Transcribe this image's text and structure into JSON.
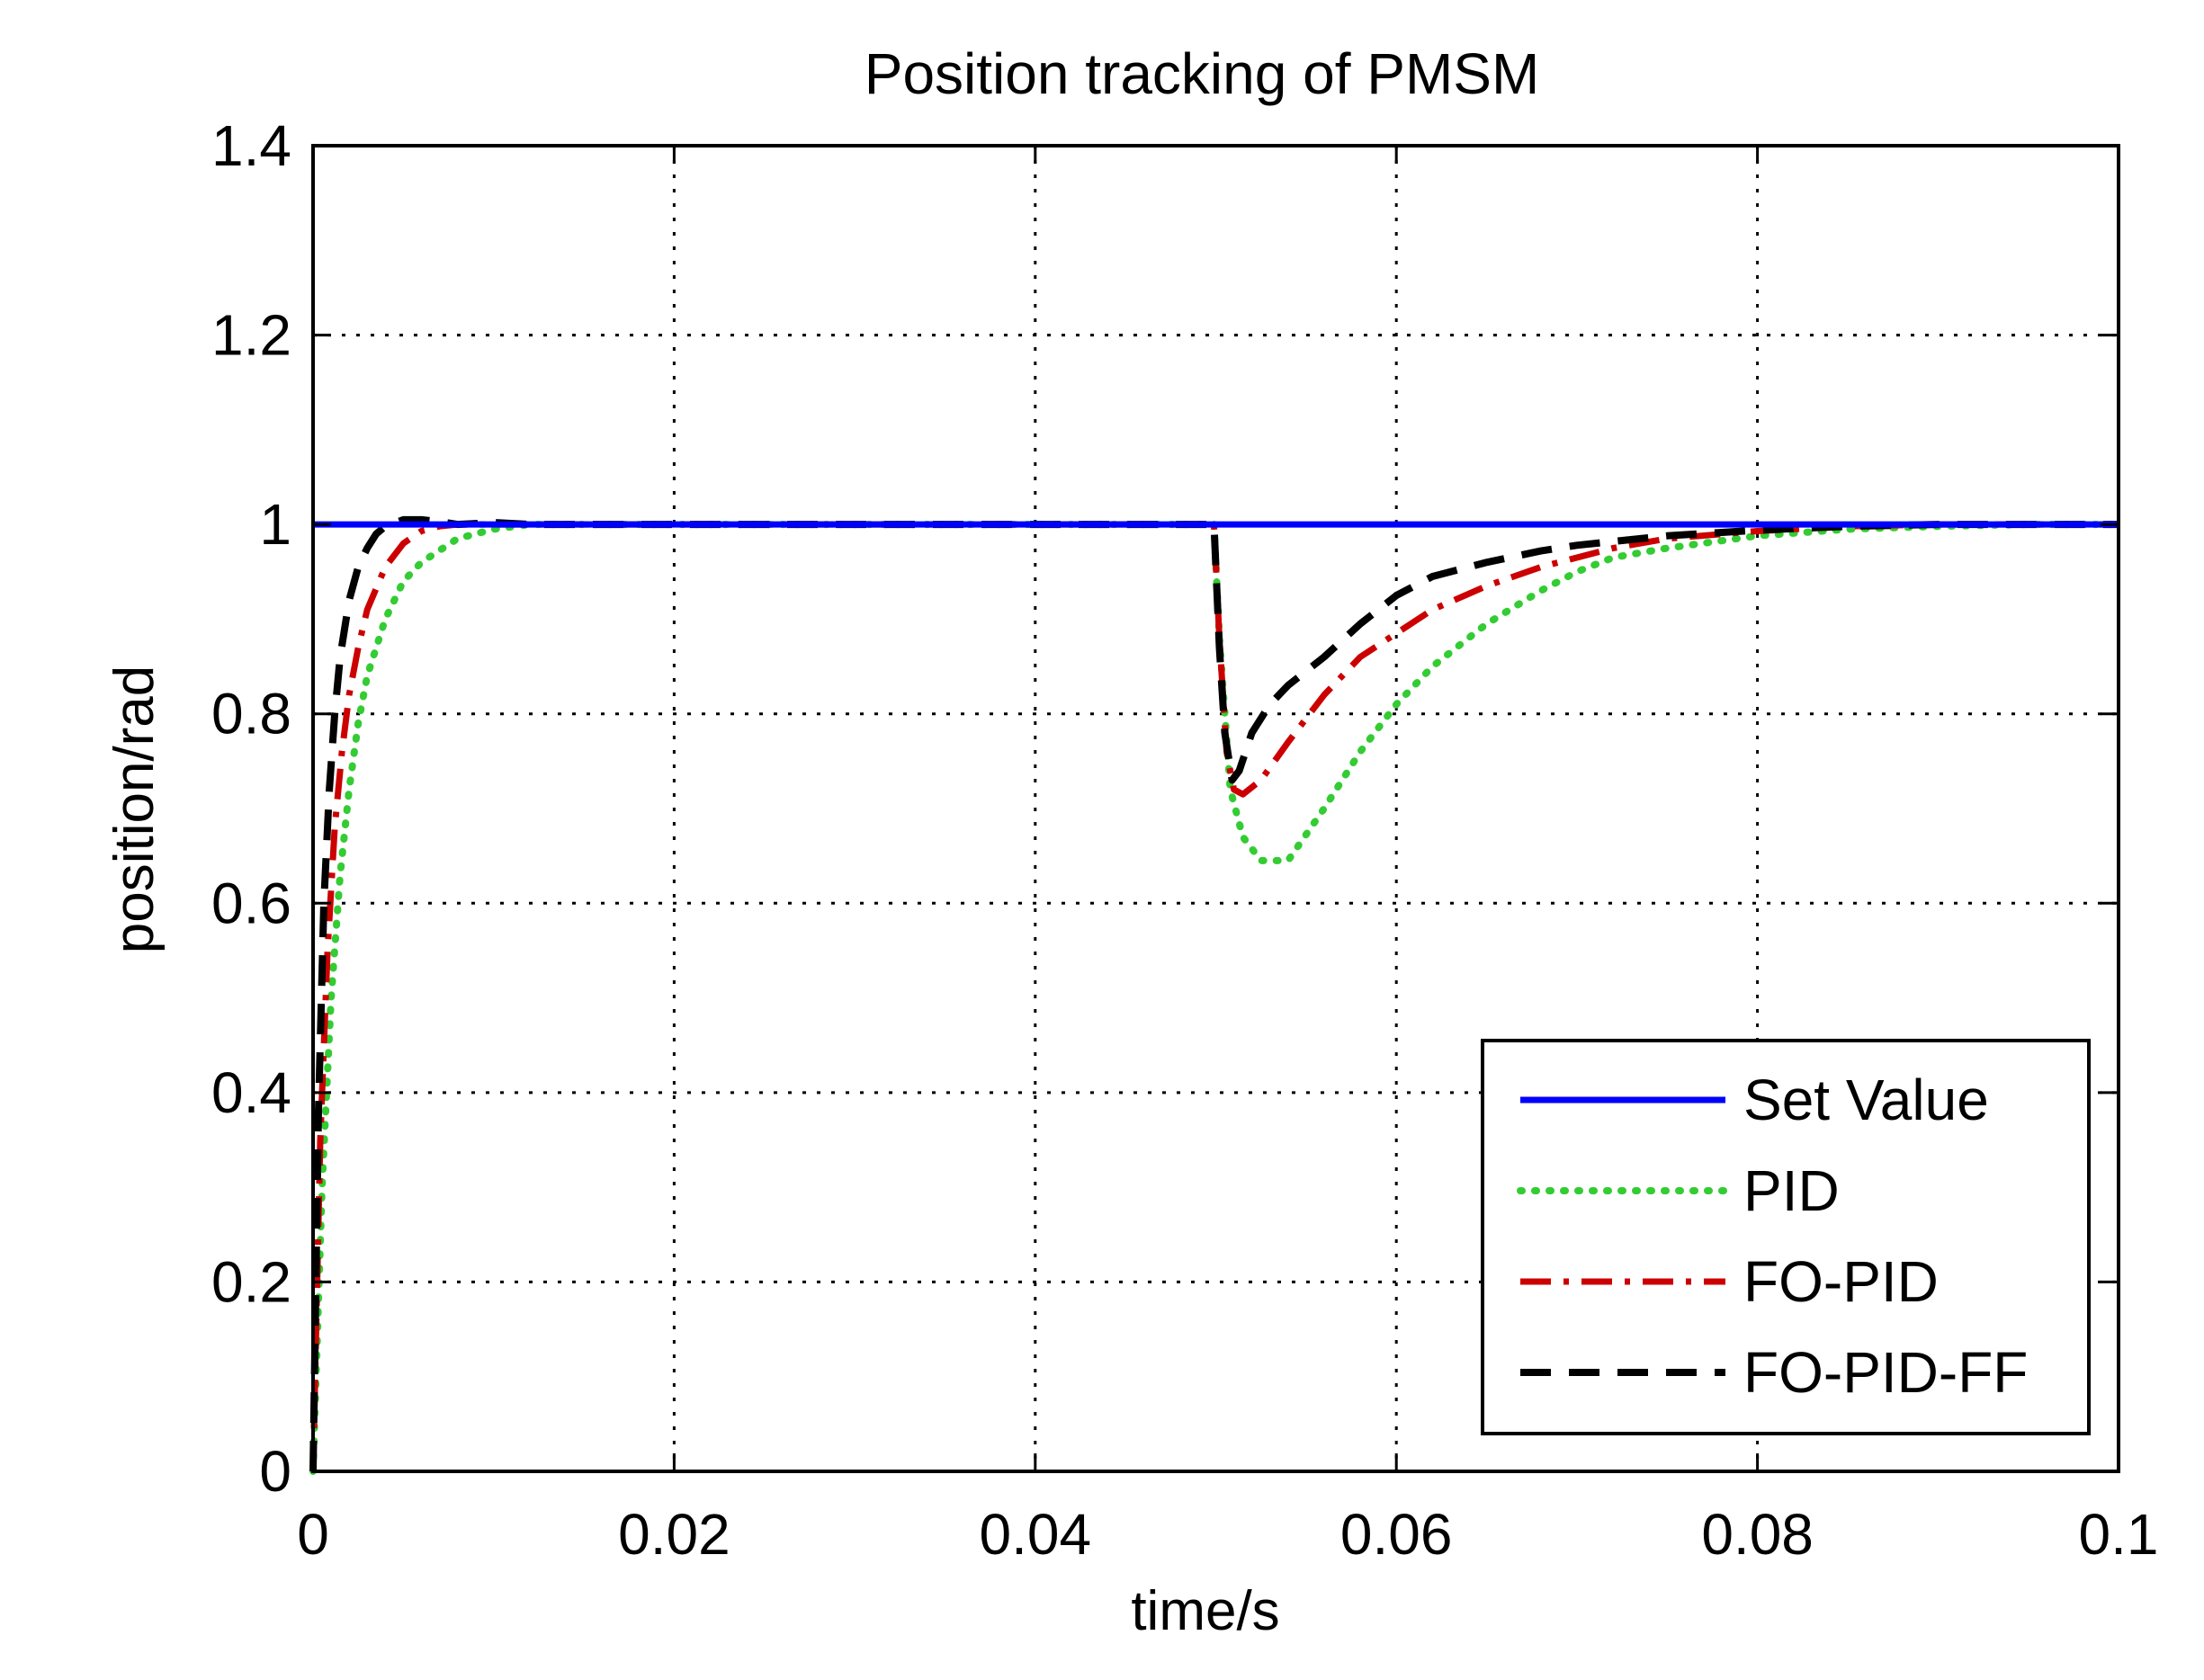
{
  "chart_data": {
    "type": "line",
    "title": "Position tracking of PMSM",
    "xlabel": "time/s",
    "ylabel": "position/rad",
    "xlim": [
      0,
      0.1
    ],
    "ylim": [
      0,
      1.4
    ],
    "xticks": [
      0,
      0.02,
      0.04,
      0.06,
      0.08,
      0.1
    ],
    "yticks": [
      0,
      0.2,
      0.4,
      0.6,
      0.8,
      1,
      1.2,
      1.4
    ],
    "xtick_labels": [
      "0",
      "0.02",
      "0.04",
      "0.06",
      "0.08",
      "0.1"
    ],
    "ytick_labels": [
      "0",
      "0.2",
      "0.4",
      "0.6",
      "0.8",
      "1",
      "1.2",
      "1.4"
    ],
    "grid": true,
    "legend_position": "bottom-right",
    "series": [
      {
        "name": "Set Value",
        "color": "#0000ff",
        "style": "solid",
        "x": [
          0,
          0.1
        ],
        "y": [
          1,
          1
        ]
      },
      {
        "name": "PID",
        "color": "#33cc33",
        "style": "dotted",
        "x": [
          0,
          0.0005,
          0.001,
          0.0015,
          0.002,
          0.0025,
          0.003,
          0.004,
          0.005,
          0.006,
          0.008,
          0.01,
          0.012,
          0.015,
          0.02,
          0.03,
          0.04,
          0.0499,
          0.0502,
          0.0508,
          0.0515,
          0.0525,
          0.054,
          0.056,
          0.058,
          0.06,
          0.062,
          0.065,
          0.068,
          0.07,
          0.072,
          0.075,
          0.08,
          0.085,
          0.09,
          0.095,
          0.1
        ],
        "y": [
          0,
          0.3,
          0.5,
          0.63,
          0.72,
          0.79,
          0.84,
          0.9,
          0.94,
          0.96,
          0.985,
          0.995,
          1.0,
          1.0,
          1.0,
          1.0,
          1.0,
          1.0,
          0.88,
          0.72,
          0.67,
          0.645,
          0.645,
          0.7,
          0.76,
          0.81,
          0.85,
          0.895,
          0.93,
          0.95,
          0.965,
          0.975,
          0.988,
          0.995,
          0.998,
          1.0,
          1.0
        ]
      },
      {
        "name": "FO-PID",
        "color": "#cc0000",
        "style": "dashdot",
        "x": [
          0,
          0.0004,
          0.0008,
          0.0012,
          0.0016,
          0.002,
          0.0025,
          0.003,
          0.004,
          0.005,
          0.006,
          0.007,
          0.008,
          0.01,
          0.015,
          0.02,
          0.03,
          0.04,
          0.0499,
          0.0502,
          0.0506,
          0.051,
          0.0515,
          0.0525,
          0.054,
          0.056,
          0.058,
          0.06,
          0.062,
          0.065,
          0.068,
          0.07,
          0.072,
          0.075,
          0.08,
          0.085,
          0.09,
          0.1
        ],
        "y": [
          0,
          0.35,
          0.55,
          0.68,
          0.76,
          0.82,
          0.87,
          0.91,
          0.955,
          0.98,
          0.993,
          0.998,
          1.0,
          1.0,
          1.0,
          1.0,
          1.0,
          1.0,
          1.0,
          0.88,
          0.76,
          0.72,
          0.715,
          0.73,
          0.77,
          0.82,
          0.86,
          0.885,
          0.91,
          0.935,
          0.955,
          0.965,
          0.975,
          0.985,
          0.993,
          0.998,
          1.0,
          1.0
        ]
      },
      {
        "name": "FO-PID-FF",
        "color": "#000000",
        "style": "dashed",
        "x": [
          0,
          0.0003,
          0.0006,
          0.0009,
          0.0012,
          0.0015,
          0.002,
          0.0025,
          0.003,
          0.0035,
          0.004,
          0.005,
          0.006,
          0.007,
          0.008,
          0.009,
          0.01,
          0.012,
          0.015,
          0.02,
          0.03,
          0.04,
          0.0499,
          0.0502,
          0.0505,
          0.0509,
          0.0513,
          0.052,
          0.053,
          0.054,
          0.056,
          0.058,
          0.06,
          0.062,
          0.065,
          0.068,
          0.07,
          0.072,
          0.075,
          0.08,
          0.085,
          0.09,
          0.1
        ],
        "y": [
          0,
          0.38,
          0.6,
          0.72,
          0.8,
          0.86,
          0.92,
          0.955,
          0.975,
          0.99,
          0.998,
          1.005,
          1.005,
          1.003,
          1.0,
          1.001,
          1.002,
          1.0,
          1.0,
          1.0,
          1.0,
          1.0,
          1.0,
          0.87,
          0.78,
          0.73,
          0.74,
          0.78,
          0.81,
          0.83,
          0.86,
          0.895,
          0.925,
          0.945,
          0.96,
          0.972,
          0.978,
          0.982,
          0.988,
          0.994,
          0.998,
          1.0,
          1.0
        ]
      }
    ]
  }
}
